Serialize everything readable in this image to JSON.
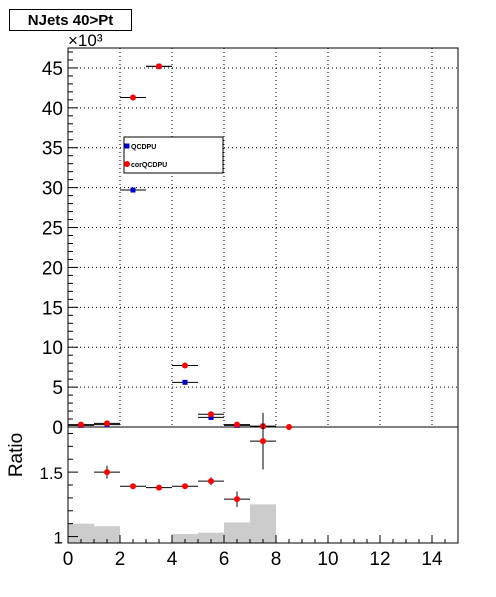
{
  "title": "NJets 40>Pt",
  "chart_data": [
    {
      "type": "scatter",
      "panel": "main",
      "y_exponent_label": "×10³",
      "xlim": [
        0,
        15
      ],
      "ylim": [
        0,
        47500
      ],
      "grid": true,
      "y_ticks": [
        0,
        5000,
        10000,
        15000,
        20000,
        25000,
        30000,
        35000,
        40000,
        45000
      ],
      "y_tick_labels": [
        "0",
        "5",
        "10",
        "15",
        "20",
        "25",
        "30",
        "35",
        "40",
        "45"
      ],
      "legend": {
        "placement": "top-left",
        "entries": [
          "QCDPU",
          "corQCDPU"
        ]
      },
      "series": [
        {
          "name": "QCDPU",
          "color": "#0000cc",
          "marker": "square",
          "x": [
            0.5,
            1.5,
            2.5,
            3.5,
            4.5,
            5.5,
            6.5,
            7.5
          ],
          "y": [
            200,
            300,
            29700,
            45200,
            5600,
            1200,
            200,
            100
          ]
        },
        {
          "name": "corQCDPU",
          "color": "#ff0000",
          "marker": "circle",
          "x": [
            0.5,
            1.5,
            2.5,
            3.5,
            4.5,
            5.5,
            6.5,
            7.5,
            8.5
          ],
          "y": [
            300,
            450,
            41300,
            45200,
            7700,
            1600,
            300,
            100,
            0
          ]
        }
      ]
    },
    {
      "type": "scatter",
      "panel": "ratio",
      "ylabel": "Ratio",
      "xlim": [
        0,
        15
      ],
      "ylim": [
        0.95,
        1.85
      ],
      "x_ticks": [
        0,
        2,
        4,
        6,
        8,
        10,
        12,
        14
      ],
      "x_tick_labels": [
        "0",
        "2",
        "4",
        "6",
        "8",
        "10",
        "12",
        "14"
      ],
      "y_tick_labels": [
        "1",
        "1.5"
      ],
      "y_tick_values": [
        1.0,
        1.5
      ],
      "ratio_points": {
        "color": "#ff0000",
        "x": [
          1.5,
          2.5,
          3.5,
          4.5,
          5.5,
          6.5,
          7.5
        ],
        "y": [
          1.5,
          1.39,
          1.38,
          1.39,
          1.43,
          1.29,
          1.74
        ],
        "yerr": [
          0.05,
          0.01,
          0.01,
          0.01,
          0.03,
          0.06,
          0.22
        ]
      },
      "background_hist": {
        "color": "#cccccc",
        "x": [
          0.5,
          1.5,
          2.5,
          3.5,
          4.5,
          5.5,
          6.5,
          7.5,
          8.5
        ],
        "y": [
          1.1,
          1.08,
          0.95,
          0.95,
          1.02,
          1.03,
          1.11,
          1.25,
          0.95
        ]
      }
    }
  ]
}
